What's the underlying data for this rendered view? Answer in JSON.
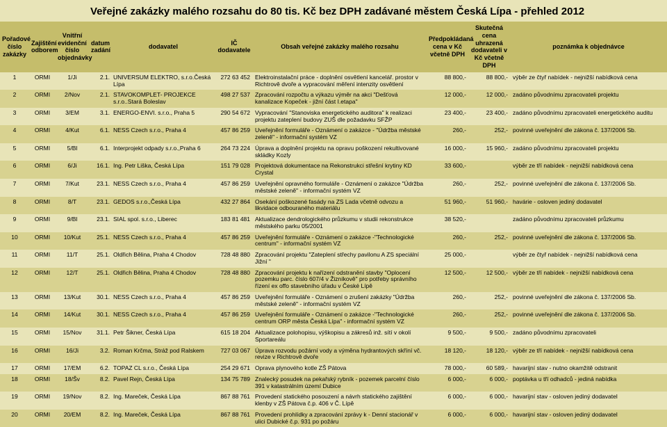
{
  "title": "Veřejné zakázky malého rozsahu do 80 tis. Kč bez DPH zadávané městem Česká Lípa - přehled 2012",
  "colors": {
    "page_bg": "#e8e4b8",
    "header_bg": "#c5bd6b",
    "row_odd": "#e8e4b8",
    "row_even": "#d8d290"
  },
  "headers": {
    "num": "Pořadové číslo zakázky",
    "dept": "Zajištění odborem",
    "ref": "Vnitřní evidenční číslo objednávky",
    "date": "datum zadání",
    "supplier": "dodavatel",
    "ico": "IČ dodavatele",
    "subject": "Obsah veřejné zakázky malého rozsahu",
    "price1": "Předpokládaná cena v Kč včetně DPH",
    "price2": "Skutečná cena uhrazená dodavateli v Kč včetně DPH",
    "note": "poznámka k objednávce"
  },
  "rows": [
    {
      "n": "1",
      "d": "ORMI",
      "r": "1/Ji",
      "dt": "2.1.",
      "s": "UNIVERSUM ELEKTRO, s.r.o.Česká Lípa",
      "i": "272 63 452",
      "sub": "Elektroinstalační práce - doplnění osvětlení kancelář. prostor v Richtrově dvoře a vypracování měření intenzity osvětlení",
      "p1": "88 800,-",
      "p2": "88 800,-",
      "nt": "výběr ze čtyř nabídek - nejnižší nabídková cena"
    },
    {
      "n": "2",
      "d": "ORMI",
      "r": "2/Nov",
      "dt": "2.1.",
      "s": "STAVOKOMPLET- PROJEKCE s.r.o..Stará Boleslav",
      "i": "498 27 537",
      "sub": "Zpracování rozpočtu a výkazu výměr na akci \"Dešťová kanalizace Kopeček - jižní část I.etapa\"",
      "p1": "12 000,-",
      "p2": "12 000,-",
      "nt": "zadáno původnímu zpracovateli projektu"
    },
    {
      "n": "3",
      "d": "ORMI",
      "r": "3/EM",
      "dt": "3.1.",
      "s": "ENERGO-ENVI. s.r.o., Praha 5",
      "i": "290 54 672",
      "sub": "Vypracování \"Stanoviska energetického auditora\" k realizaci projektu zateplení budovy ZUŠ dle požadavku SFŽP",
      "p1": "23 400,-",
      "p2": "23 400,-",
      "nt": "zadáno původnímu zpracovateli energetického auditu"
    },
    {
      "n": "4",
      "d": "ORMI",
      "r": "4/Kut",
      "dt": "6.1.",
      "s": "NESS Czech s.r.o., Praha 4",
      "i": "457 86 259",
      "sub": "Uveřejnění formuláře - Oznámení o zakázce - \"Údržba městské zeleně\" - informační systém VZ",
      "p1": "260,-",
      "p2": "252,-",
      "nt": "povinné uveřejnění dle zákona č. 137/2006 Sb."
    },
    {
      "n": "5",
      "d": "ORMI",
      "r": "5/Bl",
      "dt": "6.1.",
      "s": "Interprojekt odpady s.r.o.,Praha 6",
      "i": "264 73 224",
      "sub": "Úprava a doplnění projektu na opravu poškození rekultivované skládky Kozly",
      "p1": "16 000,-",
      "p2": "15 960,-",
      "nt": "zadáno původnímu zpracovateli projektu"
    },
    {
      "n": "6",
      "d": "ORMI",
      "r": "6/Ji",
      "dt": "16.1.",
      "s": "Ing. Petr Liška, Česká Lípa",
      "i": "151 79 028",
      "sub": "Projektová dokumentace na Rekonstrukci střešní krytiny KD Crystal",
      "p1": "33 600,-",
      "p2": "",
      "nt": "výběr ze tří nabídek - nejnižší nabídková cena"
    },
    {
      "n": "7",
      "d": "ORMI",
      "r": "7/Kut",
      "dt": "23.1.",
      "s": "NESS Czech s.r.o., Praha 4",
      "i": "457 86 259",
      "sub": "Uveřejnění opravného formuláře - Oznámení o zakázce \"Údržba městské zeleně\" - informační systém VZ",
      "p1": "260,-",
      "p2": "252,-",
      "nt": "povinné uveřejnění dle zákona č. 137/2006 Sb."
    },
    {
      "n": "8",
      "d": "ORMI",
      "r": "8/T",
      "dt": "23.1.",
      "s": "GEDOS s.r.o.,Česká Lípa",
      "i": "432 27 864",
      "sub": "Osekání poškozené fasády na ZS Lada včetně odvozu a likvidace odbouraného materiálu",
      "p1": "51 960,-",
      "p2": "51 960,-",
      "nt": "havárie - osloven jediný dodavatel"
    },
    {
      "n": "9",
      "d": "ORMI",
      "r": "9/Bl",
      "dt": "23.1.",
      "s": "SIAL spol. s.r.o., Liberec",
      "i": "183 81 481",
      "sub": "Aktualizace dendrologického průzkumu v studii rekonstrukce městského parku 05/2001",
      "p1": "38 520,-",
      "p2": "",
      "nt": "zadáno původnímu zpracovateli průzkumu"
    },
    {
      "n": "10",
      "d": "ORMI",
      "r": "10/Kut",
      "dt": "25.1.",
      "s": "NESS Czech s.r.o., Praha 4",
      "i": "457 86 259",
      "sub": "Uveřejnění formuláře - Oznámení o zakázce -\"Technologické centrum\" - informační systém VZ",
      "p1": "260,-",
      "p2": "252,-",
      "nt": "povinné uveřejnění dle zákona č. 137/2006 Sb."
    },
    {
      "n": "11",
      "d": "ORMI",
      "r": "11/T",
      "dt": "25.1.",
      "s": "Oldřich Bělina, Praha 4 Chodov",
      "i": "728 48 880",
      "sub": "Zpracování projektu \"Zateplení střechy pavilonu A ZS speciální Jižní \"",
      "p1": "25 000,-",
      "p2": "",
      "nt": "výběr ze čtyř nabídek - nejnižší nabídková cena"
    },
    {
      "n": "12",
      "d": "ORMI",
      "r": "12/T",
      "dt": "25.1.",
      "s": "Oldřich Bělina, Praha 4 Chodov",
      "i": "728 48 880",
      "sub": "Zpracování projektu k nařízení odstranění stavby \"Oplocení pozemku parc. číslo 607/4 v Žizníkově\" pro potřeby správního řízení ex offo stavebního úřadu v České Lípě",
      "p1": "12 500,-",
      "p2": "12 500,-",
      "nt": "výběr ze tří nabídek - nejnižší nabídková cena"
    },
    {
      "n": "13",
      "d": "ORMI",
      "r": "13/Kut",
      "dt": "30.1.",
      "s": "NESS Czech s.r.o., Praha 4",
      "i": "457 86 259",
      "sub": "Uveřejnění formuláře - Oznámení o zrušení zakázky \"Údržba městské zeleně\" - informační systém VZ",
      "p1": "260,-",
      "p2": "252,-",
      "nt": "povinné uveřejnění dle zákona č. 137/2006 Sb."
    },
    {
      "n": "14",
      "d": "ORMI",
      "r": "14/Kut",
      "dt": "30.1.",
      "s": "NESS Czech s.r.o., Praha 4",
      "i": "457 86 259",
      "sub": "Uveřejnění formuláře - Oznámení o zakázce -\"Technologické centrum ORP města Česká Lípa\" - informační systém VZ",
      "p1": "260,-",
      "p2": "252,-",
      "nt": "povinné uveřejnění dle zákona č. 137/2006 Sb."
    },
    {
      "n": "15",
      "d": "ORMI",
      "r": "15/Nov",
      "dt": "31.1.",
      "s": "Petr Šikner, Česká Lípa",
      "i": "615 18 204",
      "sub": "Aktualizace polohopisu, výškopisu a zákresů inž. sítí v okolí Sportareálu",
      "p1": "9 500,-",
      "p2": "9 500,-",
      "nt": "zadáno původnímu zpracovateli"
    },
    {
      "n": "16",
      "d": "ORMI",
      "r": "16/Ji",
      "dt": "3.2.",
      "s": "Roman Krčma, Stráž pod Ralskem",
      "i": "727 03 067",
      "sub": "Úprava rozvodu požární vody a výměna hydrantových skříní vč. revize v Richtrově dvoře",
      "p1": "18 120,-",
      "p2": "18 120,-",
      "nt": "výběr ze tří nabídek - nejnižší nabídková cena"
    },
    {
      "n": "17",
      "d": "ORMI",
      "r": "17/EM",
      "dt": "6.2.",
      "s": "TOPAZ CL s.r.o., Česká Lípa",
      "i": "254 29 671",
      "sub": "Oprava plynového kotle ZŠ Pátova",
      "p1": "78 000,-",
      "p2": "60 589,-",
      "nt": "havarijní stav - nutno okamžitě odstranit"
    },
    {
      "n": "18",
      "d": "ORMI",
      "r": "18/Šv",
      "dt": "8.2.",
      "s": "Pavel Rejn, Česká Lípa",
      "i": "134 75 789",
      "sub": "Znalecký posudek na pekařský rybník - pozemek parcelní číslo 391 v katastrálním území Dubice",
      "p1": "6 000,-",
      "p2": "6 000,-",
      "nt": "poptávka u tří odhadců - jediná nabídka"
    },
    {
      "n": "19",
      "d": "ORMI",
      "r": "19/Nov",
      "dt": "8.2.",
      "s": "Ing. Mareček, Česká Lípa",
      "i": "867 88 761",
      "sub": "Provedení statického posouzení a návrh statického zajištění klenby v ZŠ Pátova č.p. 406 v Č. Lípě",
      "p1": "6 000,-",
      "p2": "6 000,-",
      "nt": "havarijní stav - osloven jediný dodavatel"
    },
    {
      "n": "20",
      "d": "ORMI",
      "r": "20/EM",
      "dt": "8.2.",
      "s": "Ing. Mareček, Česká Lípa",
      "i": "867 88 761",
      "sub": "Provedení prohlídky a zpracování zprávy k - Denní stacionář v ulici Dubické č.p. 931 po požáru",
      "p1": "6 000,-",
      "p2": "6 000,-",
      "nt": "havarijní stav - osloven jediný dodavatel"
    }
  ]
}
